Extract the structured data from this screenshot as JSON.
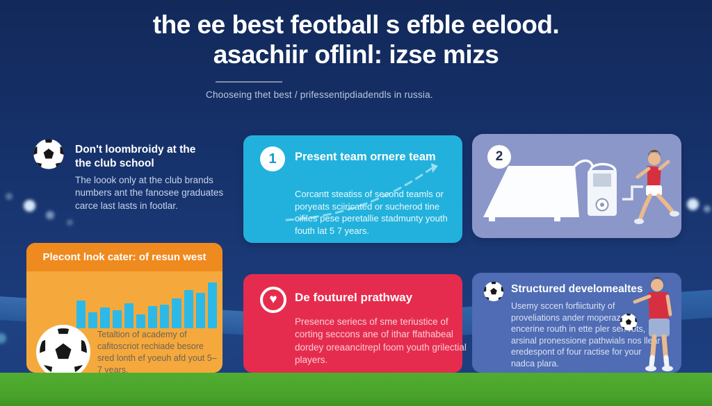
{
  "header": {
    "title_line1": "the ee best feotball s efble eelood.",
    "title_line2": "asachiir oflinl: izse mizs",
    "subtitle": "Chooseing thet best / prifessentipdiadendls in russia."
  },
  "cards": {
    "club_school": {
      "icon": "soccer-ball-icon",
      "heading_line1": "Don't loombroidy at the",
      "heading_line2": "the club school",
      "body": "The loook only at the club brands numbers ant the fanosee graduates carce last lasts in footlar."
    },
    "present_team": {
      "step_number": "1",
      "heading": "Present team ornere team",
      "decoration": "dashed-rising-trend-arrow",
      "body": "Corcantt steatiss of second teamls or poryeats sciiricated or sucherod tine cifiles pese peretallie stadmunty youth fouth lat 5 7 years."
    },
    "training_step": {
      "step_number": "2",
      "illustration": "bench-tunnel-machine-and-running-player"
    },
    "result_west": {
      "icon": "soccer-ball-icon",
      "heading": "Plecont lnok cater: of resun west",
      "body": "Tetaltion of academy of cafitoscriot rechiade besore sred lonth ef yoeuh afd yout 5–7 years."
    },
    "pathway": {
      "icon": "heart-icon",
      "heart_glyph": "♥",
      "heading": "De fouturel prathway",
      "body": "Presence seriecs of sme teriustice of corting seccons ane of ithar ffathabeal dordey oreaancitrepl foom youth grilectial players."
    },
    "structured": {
      "icon": "soccer-ball-icon",
      "heading": "Structured develomealtes",
      "illustration": "standing-player-with-ball",
      "body": "Usemy sccen forfiicturity of proveliations ander moperazed encerine routh in ette pler ser. rots, arsinal pronessione pathwials nos llear eredespont of four ractise for your nadca plara."
    }
  },
  "chart_data": {
    "type": "bar",
    "values": [
      60,
      35,
      45,
      40,
      55,
      30,
      48,
      52,
      65,
      84,
      77,
      100
    ],
    "title": "",
    "xlabel": "",
    "ylabel": "",
    "ylim": [
      0,
      100
    ],
    "bar_color": "#2cb9e8",
    "legend": "none",
    "grid": "off"
  },
  "colors": {
    "background_navy": "#16316a",
    "card_cyan": "#22b1dc",
    "card_periwinkle": "#8b97c9",
    "card_orange_body": "#f5a93c",
    "card_orange_header": "#ef8a1e",
    "card_red": "#e62c4e",
    "card_blue": "#4f6cb4",
    "grass_green": "#49a32a",
    "bar_cyan": "#2cb9e8",
    "jersey_red": "#d63040"
  }
}
